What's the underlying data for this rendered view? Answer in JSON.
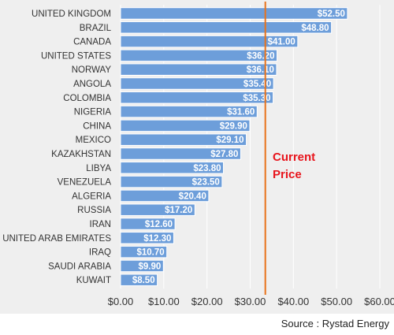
{
  "chart_data": {
    "type": "bar",
    "orientation": "horizontal",
    "categories": [
      "UNITED KINGDOM",
      "BRAZIL",
      "CANADA",
      "UNITED STATES",
      "NORWAY",
      "ANGOLA",
      "COLOMBIA",
      "NIGERIA",
      "CHINA",
      "MEXICO",
      "KAZAKHSTAN",
      "LIBYA",
      "VENEZUELA",
      "ALGERIA",
      "RUSSIA",
      "IRAN",
      "UNITED ARAB EMIRATES",
      "IRAQ",
      "SAUDI ARABIA",
      "KUWAIT"
    ],
    "values": [
      52.5,
      48.8,
      41.0,
      36.2,
      36.1,
      35.4,
      35.3,
      31.6,
      29.9,
      29.1,
      27.8,
      23.8,
      23.5,
      20.4,
      17.2,
      12.6,
      12.3,
      10.7,
      9.9,
      8.5
    ],
    "value_labels": [
      "$52.50",
      "$48.80",
      "$41.00",
      "$36.20",
      "$36.10",
      "$35.40",
      "$35.30",
      "$31.60",
      "$29.90",
      "$29.10",
      "$27.80",
      "$23.80",
      "$23.50",
      "$20.40",
      "$17.20",
      "$12.60",
      "$12.30",
      "$10.70",
      "$9.90",
      "$8.50"
    ],
    "xlim": [
      0,
      60
    ],
    "xticks": [
      0,
      10,
      20,
      30,
      40,
      50,
      60
    ],
    "xtick_labels": [
      "$0.00",
      "$10.00",
      "$20.00",
      "$30.00",
      "$40.00",
      "$50.00",
      "$60.00"
    ],
    "reference_line": {
      "value": 33.5,
      "label_lines": [
        "Current",
        "Price"
      ],
      "color": "#e8731a",
      "label_color": "#e8141c"
    },
    "bar_color": "#6d9eda",
    "bar_edge_color": "#ffffff",
    "grid": true,
    "grid_color": "#ffffff",
    "background_color": "#efefef"
  },
  "source": "Source : Rystad Energy"
}
